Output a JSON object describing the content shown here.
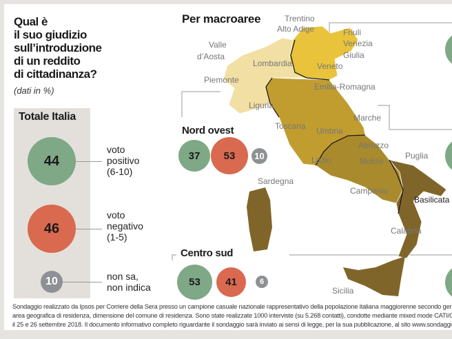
{
  "title": "Qual è il suo giudizio sull’introduzione di un reddito di cittadinanza?",
  "title_lines": [
    "Qual è",
    "il suo giudizio",
    "sull’introduzione",
    "di un reddito",
    "di cittadinanza?"
  ],
  "unit": "(dati in %)",
  "totale": {
    "title": "Totale Italia",
    "positivo": "44",
    "negativo": "46",
    "non_sa": "10",
    "labels": {
      "positivo": [
        "voto",
        "positivo",
        "(6-10)"
      ],
      "negativo": [
        "voto",
        "negativo",
        "(1-5)"
      ],
      "non_sa": [
        "non sa,",
        "non indica"
      ]
    }
  },
  "map": {
    "title": "Per macroaree",
    "regions": [
      "Trentino",
      "Alto Adige",
      "Friuli",
      "Venezia",
      "Giulia",
      "Valle",
      "d’Aosta",
      "Lombardia",
      "Veneto",
      "Piemonte",
      "Emilia-Romagna",
      "Liguria",
      "Marche",
      "Toscana",
      "Umbria",
      "Abruzzo",
      "Lazio",
      "Molise",
      "Puglia",
      "Sardegna",
      "Campania",
      "Basilicata",
      "Calabria",
      "Sicilia"
    ],
    "colors": {
      "nord_ovest": "#f1dfa3",
      "nord_est": "#e9c33b",
      "centro": "#c19d30",
      "centro_sud": "#a98a2c",
      "sud": "#80652a"
    }
  },
  "areas": {
    "nord_ovest": {
      "title": "Nord ovest",
      "positivo": "37",
      "negativo": "53",
      "non_sa": "10"
    },
    "centro_sud": {
      "title": "Centro sud",
      "positivo": "53",
      "negativo": "41",
      "non_sa": "6"
    }
  },
  "colors": {
    "positivo": "#7fa886",
    "negativo": "#d9694f",
    "non_sa": "#8d9194"
  },
  "footer": [
    "Sondaggio realizzato da Ipsos per Corriere della Sera presso un campione casuale nazionale rappresentativo della popolazione italiana maggiorenne secondo gener",
    "area geografica di residenza, dimensione del comune di residenza. Sono state realizzate 1000  interviste (su 5.268 contatti), condotte mediante mixed mode CATI/C",
    "il 25 e 26 settembre 2018. Il documento informativo completo riguardante il sondaggio sarà inviato ai sensi di legge, per la sua pubblicazione, al sito www.sondaggi"
  ]
}
